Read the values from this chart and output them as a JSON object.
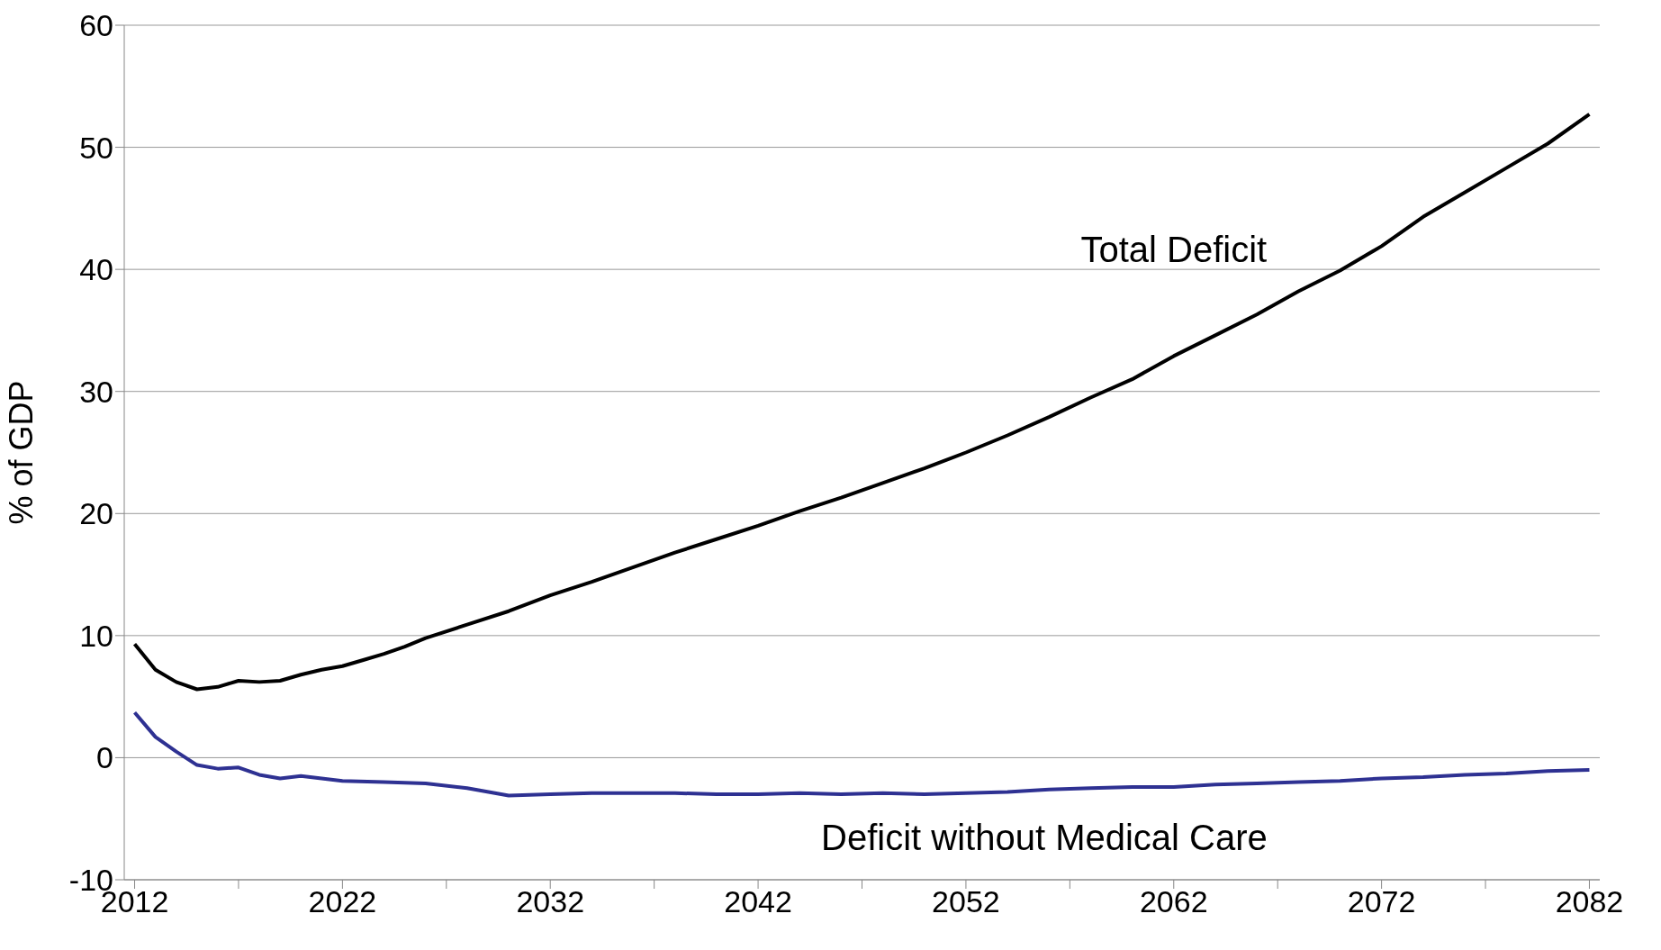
{
  "chart_data": {
    "type": "line",
    "ylabel": "% of GDP",
    "xlim": [
      2011.5,
      2082.5
    ],
    "xticks": [
      2012,
      {
        "value": 2017,
        "label": null
      },
      2022,
      {
        "value": 2027,
        "label": null
      },
      2032,
      {
        "value": 2037,
        "label": null
      },
      2042,
      {
        "value": 2047,
        "label": null
      },
      2052,
      {
        "value": 2057,
        "label": null
      },
      2062,
      {
        "value": 2067,
        "label": null
      },
      2072,
      {
        "value": 2077,
        "label": null
      },
      2082
    ],
    "ylim": [
      -10,
      60
    ],
    "yticks": [
      -10,
      0,
      10,
      20,
      30,
      40,
      50,
      60
    ],
    "grid": "y",
    "legend": false,
    "marker": "none",
    "line_style": "solid",
    "series": [
      {
        "name": "Total Deficit",
        "color": "#000000",
        "x": [
          2012,
          2013,
          2014,
          2015,
          2016,
          2017,
          2018,
          2019,
          2020,
          2021,
          2022,
          2023,
          2024,
          2025,
          2026,
          2028,
          2030,
          2032,
          2034,
          2036,
          2038,
          2040,
          2042,
          2044,
          2046,
          2048,
          2050,
          2052,
          2054,
          2056,
          2058,
          2060,
          2062,
          2064,
          2066,
          2068,
          2070,
          2072,
          2074,
          2076,
          2078,
          2080,
          2082
        ],
        "values": [
          9.3,
          7.2,
          6.2,
          5.6,
          5.8,
          6.3,
          6.2,
          6.3,
          6.8,
          7.2,
          7.5,
          8.0,
          8.5,
          9.1,
          9.8,
          10.9,
          12.0,
          13.3,
          14.4,
          15.6,
          16.8,
          17.9,
          19.0,
          20.2,
          21.3,
          22.5,
          23.7,
          25.0,
          26.4,
          27.9,
          29.5,
          31.0,
          32.9,
          34.6,
          36.3,
          38.2,
          39.9,
          41.9,
          44.3,
          46.3,
          48.3,
          50.3,
          52.7
        ]
      },
      {
        "name": "Deficit without Medical Care",
        "color": "#2e3192",
        "x": [
          2012,
          2013,
          2014,
          2015,
          2016,
          2017,
          2018,
          2019,
          2020,
          2022,
          2024,
          2026,
          2028,
          2030,
          2032,
          2034,
          2036,
          2038,
          2040,
          2042,
          2044,
          2046,
          2048,
          2050,
          2052,
          2054,
          2056,
          2058,
          2060,
          2062,
          2064,
          2066,
          2068,
          2070,
          2072,
          2074,
          2076,
          2078,
          2080,
          2082
        ],
        "values": [
          3.7,
          1.7,
          0.5,
          -0.6,
          -0.9,
          -0.8,
          -1.4,
          -1.7,
          -1.5,
          -1.9,
          -2.0,
          -2.1,
          -2.5,
          -3.1,
          -3.0,
          -2.9,
          -2.9,
          -2.9,
          -3.0,
          -3.0,
          -2.9,
          -3.0,
          -2.9,
          -3.0,
          -2.9,
          -2.8,
          -2.6,
          -2.5,
          -2.4,
          -2.4,
          -2.2,
          -2.1,
          -2.0,
          -1.9,
          -1.7,
          -1.6,
          -1.4,
          -1.3,
          -1.1,
          -1.0
        ]
      }
    ]
  }
}
